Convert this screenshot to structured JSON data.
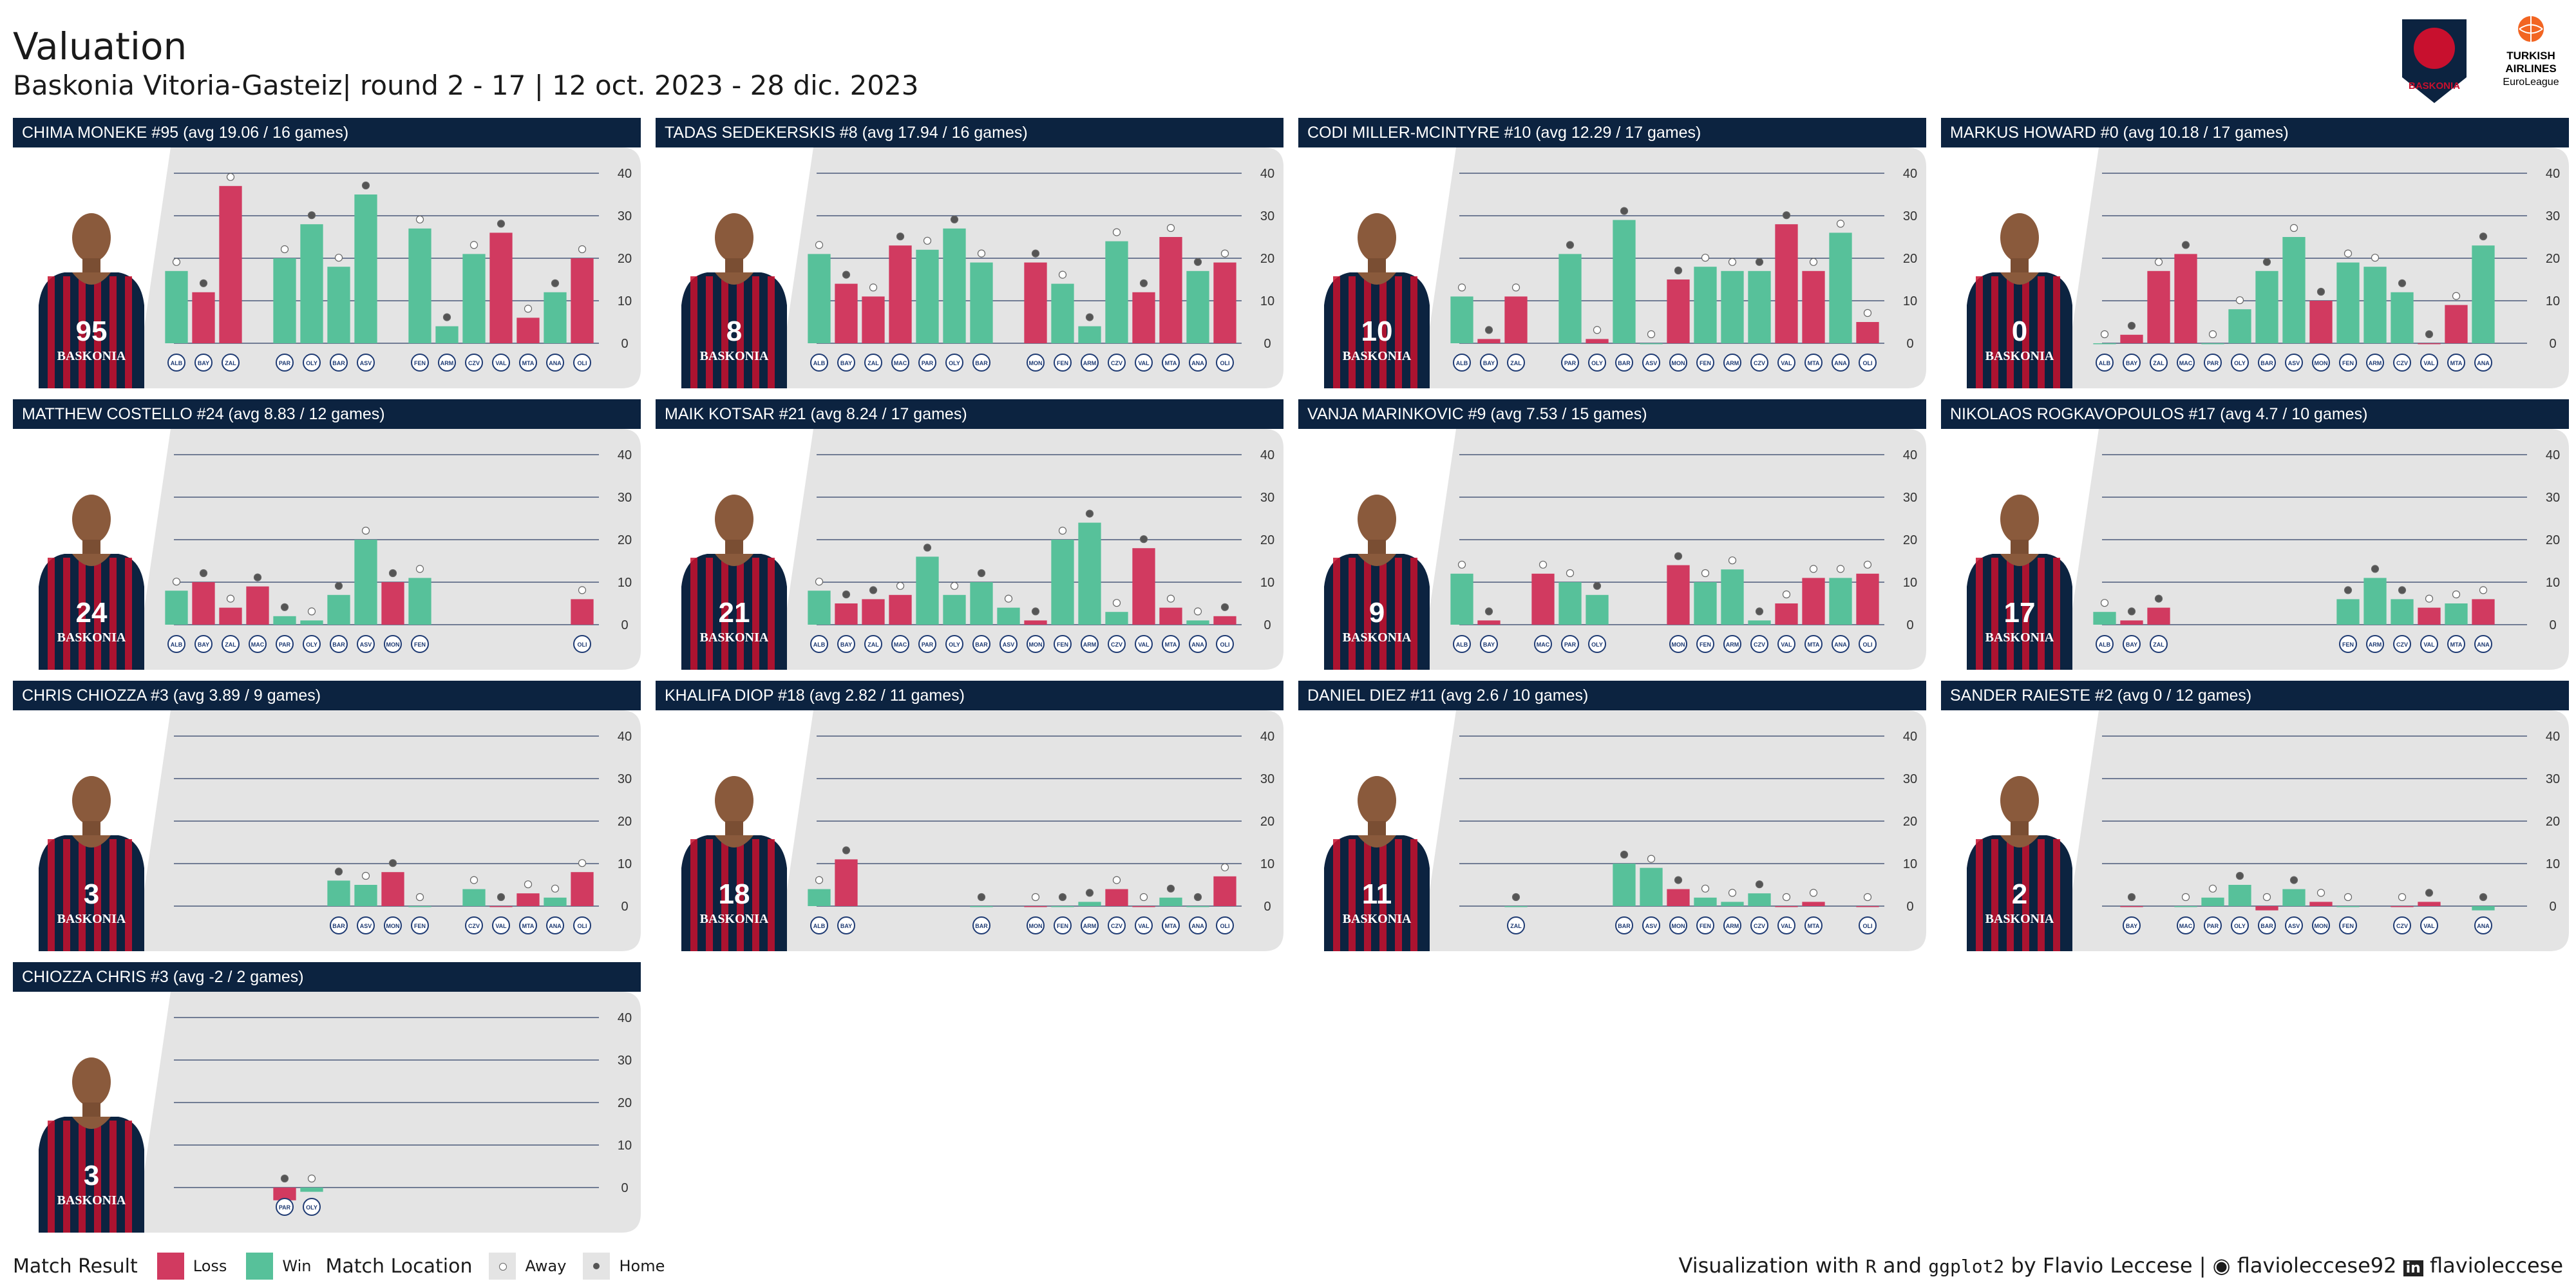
{
  "title": "Valuation",
  "subtitle": "Baskonia Vitoria-Gasteiz| round 2 - 17 | 12 oct. 2023 - 28 dic. 2023",
  "logos": {
    "team_logo_text": "BASKONIA",
    "league_logo_text": [
      "TURKISH",
      "AIRLINES",
      "EuroLeague"
    ]
  },
  "colors": {
    "loss": "#d13a60",
    "win": "#57c19a",
    "header_bg": "#0c2340",
    "panel_bg": "#e4e4e4",
    "away_dot": "#ffffff",
    "home_dot": "#555555"
  },
  "chart_data": {
    "type": "bar",
    "ylim": [
      -3,
      42
    ],
    "y_ticks": [
      0,
      10,
      20,
      30,
      40
    ],
    "rounds": [
      2,
      3,
      4,
      5,
      6,
      7,
      8,
      9,
      10,
      11,
      12,
      13,
      14,
      15,
      16,
      17
    ],
    "opponent_icons": [
      "ALB",
      "BAY",
      "ZAL",
      "MAC",
      "PAR",
      "OLY",
      "BAR",
      "ASV",
      "MON",
      "FEN",
      "ARM",
      "CZV",
      "VAL",
      "MTA",
      "ANA",
      "OLI"
    ],
    "players": [
      {
        "name": "CHIMA MONEKE #95 (avg 19.06 / 16 games)",
        "jersey": "95",
        "values": [
          17,
          12,
          37,
          null,
          20,
          28,
          18,
          35,
          null,
          27,
          4,
          21,
          26,
          6,
          12,
          20
        ],
        "wins": [
          1,
          0,
          0,
          null,
          1,
          1,
          1,
          1,
          null,
          1,
          1,
          1,
          0,
          0,
          1,
          0
        ],
        "away": [
          1,
          0,
          1,
          null,
          1,
          0,
          1,
          0,
          null,
          1,
          0,
          1,
          0,
          1,
          0,
          1
        ]
      },
      {
        "name": "TADAS SEDEKERSKIS #8 (avg 17.94 / 16 games)",
        "jersey": "8",
        "values": [
          21,
          14,
          11,
          23,
          22,
          27,
          19,
          null,
          19,
          14,
          4,
          24,
          12,
          25,
          17,
          19
        ],
        "wins": [
          1,
          0,
          0,
          0,
          1,
          1,
          1,
          null,
          0,
          1,
          1,
          1,
          0,
          0,
          1,
          0
        ],
        "away": [
          1,
          0,
          1,
          0,
          1,
          0,
          1,
          null,
          0,
          1,
          0,
          1,
          0,
          1,
          0,
          1
        ]
      },
      {
        "name": "CODI MILLER-MCINTYRE #10 (avg 12.29 / 17 games)",
        "jersey": "10",
        "values": [
          11,
          1,
          11,
          null,
          21,
          1,
          29,
          0,
          15,
          18,
          17,
          17,
          28,
          17,
          26,
          5
        ],
        "wins": [
          1,
          0,
          0,
          null,
          1,
          0,
          1,
          1,
          0,
          1,
          1,
          1,
          0,
          0,
          1,
          0
        ],
        "away": [
          1,
          0,
          1,
          null,
          0,
          1,
          0,
          1,
          0,
          1,
          1,
          0,
          0,
          1,
          1,
          1
        ]
      },
      {
        "name": "MARKUS HOWARD #0 (avg 10.18 / 17 games)",
        "jersey": "0",
        "values": [
          0,
          2,
          17,
          21,
          0,
          8,
          17,
          25,
          10,
          19,
          18,
          12,
          0,
          9,
          23,
          null
        ],
        "wins": [
          1,
          0,
          0,
          0,
          1,
          1,
          1,
          1,
          0,
          1,
          1,
          1,
          0,
          0,
          1,
          null
        ],
        "away": [
          1,
          0,
          1,
          0,
          1,
          1,
          0,
          1,
          0,
          1,
          1,
          0,
          0,
          1,
          0,
          null
        ]
      },
      {
        "name": "MATTHEW COSTELLO #24 (avg 8.83 / 12 games)",
        "jersey": "24",
        "values": [
          8,
          10,
          4,
          9,
          2,
          1,
          7,
          20,
          10,
          11,
          null,
          null,
          null,
          null,
          null,
          6
        ],
        "wins": [
          1,
          0,
          0,
          0,
          1,
          1,
          1,
          1,
          0,
          1,
          null,
          null,
          null,
          null,
          null,
          0
        ],
        "away": [
          1,
          0,
          1,
          0,
          0,
          1,
          0,
          1,
          0,
          1,
          null,
          null,
          null,
          null,
          null,
          1
        ]
      },
      {
        "name": "MAIK KOTSAR #21 (avg 8.24 / 17 games)",
        "jersey": "21",
        "values": [
          8,
          5,
          6,
          7,
          16,
          7,
          10,
          4,
          1,
          20,
          24,
          3,
          18,
          4,
          1,
          2
        ],
        "wins": [
          1,
          0,
          0,
          0,
          1,
          1,
          1,
          1,
          0,
          1,
          1,
          1,
          0,
          0,
          1,
          0
        ],
        "away": [
          1,
          0,
          0,
          1,
          0,
          1,
          0,
          1,
          0,
          1,
          0,
          1,
          0,
          1,
          1,
          0
        ]
      },
      {
        "name": "VANJA MARINKOVIC #9 (avg 7.53 / 15 games)",
        "jersey": "9",
        "values": [
          12,
          1,
          null,
          12,
          10,
          7,
          null,
          null,
          14,
          10,
          13,
          1,
          5,
          11,
          11,
          12
        ],
        "wins": [
          1,
          0,
          null,
          0,
          1,
          1,
          null,
          null,
          0,
          1,
          1,
          1,
          0,
          0,
          1,
          0
        ],
        "away": [
          1,
          0,
          null,
          1,
          1,
          0,
          null,
          null,
          0,
          1,
          1,
          0,
          1,
          1,
          1,
          1
        ]
      },
      {
        "name": "NIKOLAOS ROGKAVOPOULOS #17 (avg 4.7 / 10 games)",
        "jersey": "17",
        "values": [
          3,
          1,
          4,
          null,
          null,
          null,
          null,
          null,
          null,
          6,
          11,
          6,
          4,
          5,
          6,
          null
        ],
        "wins": [
          1,
          0,
          0,
          null,
          null,
          null,
          null,
          null,
          null,
          1,
          1,
          1,
          0,
          1,
          0,
          null
        ],
        "away": [
          1,
          0,
          0,
          null,
          null,
          null,
          null,
          null,
          null,
          0,
          0,
          0,
          1,
          1,
          1,
          null
        ]
      },
      {
        "name": "CHRIS CHIOZZA #3 (avg 3.89 / 9 games)",
        "jersey": "3",
        "values": [
          null,
          null,
          null,
          null,
          null,
          null,
          6,
          5,
          8,
          0,
          null,
          4,
          0,
          3,
          2,
          8
        ],
        "wins": [
          null,
          null,
          null,
          null,
          null,
          null,
          1,
          1,
          0,
          1,
          null,
          1,
          0,
          0,
          1,
          0
        ],
        "away": [
          null,
          null,
          null,
          null,
          null,
          null,
          0,
          1,
          0,
          1,
          null,
          1,
          0,
          1,
          1,
          1
        ]
      },
      {
        "name": "KHALIFA DIOP #18 (avg 2.82 / 11 games)",
        "jersey": "18",
        "values": [
          4,
          11,
          null,
          null,
          null,
          null,
          0,
          null,
          0,
          0,
          1,
          4,
          0,
          2,
          0,
          7
        ],
        "wins": [
          1,
          0,
          null,
          null,
          null,
          null,
          1,
          null,
          0,
          1,
          1,
          0,
          0,
          1,
          1,
          0
        ],
        "away": [
          1,
          0,
          null,
          null,
          null,
          null,
          0,
          null,
          1,
          0,
          0,
          1,
          1,
          0,
          0,
          1
        ]
      },
      {
        "name": "DANIEL DIEZ #11 (avg 2.6 / 10 games)",
        "jersey": "11",
        "values": [
          null,
          null,
          0,
          null,
          null,
          null,
          10,
          9,
          4,
          2,
          1,
          3,
          0,
          1,
          null,
          0
        ],
        "wins": [
          null,
          null,
          1,
          null,
          null,
          null,
          1,
          1,
          0,
          1,
          1,
          1,
          0,
          0,
          null,
          0
        ],
        "away": [
          null,
          null,
          0,
          null,
          null,
          null,
          0,
          1,
          0,
          1,
          1,
          0,
          1,
          1,
          null,
          1
        ]
      },
      {
        "name": "SANDER RAIESTE #2 (avg 0 / 12 games)",
        "jersey": "2",
        "values": [
          null,
          0,
          null,
          0,
          2,
          5,
          -1,
          4,
          1,
          0,
          null,
          0,
          1,
          null,
          -1,
          null
        ],
        "wins": [
          null,
          0,
          null,
          1,
          1,
          1,
          0,
          1,
          0,
          1,
          null,
          0,
          0,
          null,
          1,
          null
        ],
        "away": [
          null,
          0,
          null,
          1,
          1,
          0,
          1,
          0,
          1,
          1,
          null,
          1,
          0,
          null,
          0,
          null
        ]
      },
      {
        "name": "CHIOZZA CHRIS #3 (avg -2 / 2 games)",
        "jersey": "3",
        "values": [
          null,
          null,
          null,
          null,
          -3,
          -1,
          null,
          null,
          null,
          null,
          null,
          null,
          null,
          null,
          null,
          null
        ],
        "wins": [
          null,
          null,
          null,
          null,
          0,
          1,
          null,
          null,
          null,
          null,
          null,
          null,
          null,
          null,
          null,
          null
        ],
        "away": [
          null,
          null,
          null,
          null,
          0,
          1,
          null,
          null,
          null,
          null,
          null,
          null,
          null,
          null,
          null,
          null
        ]
      }
    ]
  },
  "legend": {
    "result_title": "Match Result",
    "loss_label": "Loss",
    "win_label": "Win",
    "location_title": "Match Location",
    "away_label": "Away",
    "home_label": "Home"
  },
  "caption": {
    "prefix": "Visualization with",
    "r": "R",
    "and": "and",
    "ggplot": "ggplot2",
    "by": "by Flavio Leccese |",
    "github": "flavioleccese92",
    "linkedin": "flavioleccese"
  }
}
